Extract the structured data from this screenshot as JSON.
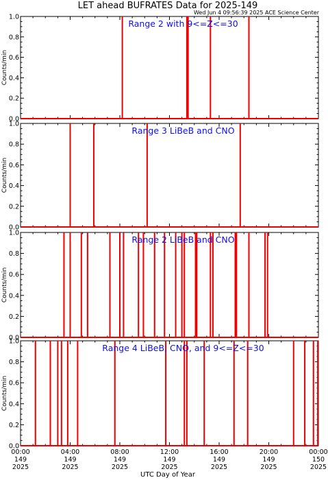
{
  "title": "LET ahead BUFRATES Data for 2025-149",
  "subtitle": "Wed Jun  4 09:56:39 2025 ACE Science Center",
  "xlabel": "UTC Day of Year",
  "colors": {
    "data": "#ee0000",
    "panel_title": "#1010ee",
    "axes": "#000000"
  },
  "x_ticks": [
    {
      "time": "00:00",
      "doy": "149",
      "year": "2025"
    },
    {
      "time": "04:00",
      "doy": "149",
      "year": "2025"
    },
    {
      "time": "08:00",
      "doy": "149",
      "year": "2025"
    },
    {
      "time": "12:00",
      "doy": "149",
      "year": "2025"
    },
    {
      "time": "16:00",
      "doy": "149",
      "year": "2025"
    },
    {
      "time": "20:00",
      "doy": "149",
      "year": "2025"
    },
    {
      "time": "00:00",
      "doy": "150",
      "year": "2025"
    }
  ],
  "chart_data": [
    {
      "type": "line",
      "title": "Range 2 with 9<=Z<=30",
      "ylabel": "Counts/min",
      "xlim_hours": [
        0,
        24
      ],
      "ylim": [
        0,
        1.0
      ],
      "yticks": [
        "0.0",
        "0.2",
        "0.4",
        "0.6",
        "0.8",
        "1.0"
      ],
      "spike_hours": [
        8.2,
        13.4,
        13.5,
        15.3,
        18.4
      ],
      "spike_value": 1.0,
      "baseline": 0.0
    },
    {
      "type": "line",
      "title": "Range 3 LiBeB and CNO",
      "ylabel": "Counts/min",
      "xlim_hours": [
        0,
        24
      ],
      "ylim": [
        0,
        1.0
      ],
      "yticks": [
        "0.0",
        "0.2",
        "0.4",
        "0.6",
        "0.8",
        "1.0"
      ],
      "spike_hours": [
        4.0,
        5.9,
        10.2,
        17.7
      ],
      "spike_value": 1.0,
      "baseline": 0.0
    },
    {
      "type": "line",
      "title": "Range 2 LiBeB and CNO",
      "ylabel": "Counts/min",
      "xlim_hours": [
        0,
        24
      ],
      "ylim": [
        0,
        1.0
      ],
      "yticks": [
        "0.0",
        "0.2",
        "0.4",
        "0.6",
        "0.8",
        "1.0"
      ],
      "spike_hours": [
        3.5,
        4.0,
        4.9,
        5.4,
        7.2,
        8.0,
        8.3,
        9.5,
        9.9,
        10.8,
        11.6,
        12.5,
        13.0,
        13.2,
        14.1,
        14.2,
        15.3,
        15.5,
        17.3,
        17.4,
        18.4,
        19.7,
        19.9
      ],
      "spike_value": 1.0,
      "baseline": 0.0
    },
    {
      "type": "line",
      "title": "Range 4 LiBeB, CNO, and 9<=Z<=30",
      "ylabel": "Counts/min",
      "xlim_hours": [
        0,
        24
      ],
      "ylim": [
        0,
        1.0
      ],
      "yticks": [
        "0.0",
        "0.2",
        "0.4",
        "0.6",
        "0.8",
        "1.0"
      ],
      "spike_hours": [
        1.2,
        2.4,
        3.0,
        3.3,
        3.8,
        4.6,
        7.6,
        11.7,
        13.2,
        13.4,
        14.8,
        17.2,
        18.3,
        22.0,
        22.9,
        23.6,
        23.95
      ],
      "spike_value": 1.0,
      "baseline": 0.0
    }
  ]
}
